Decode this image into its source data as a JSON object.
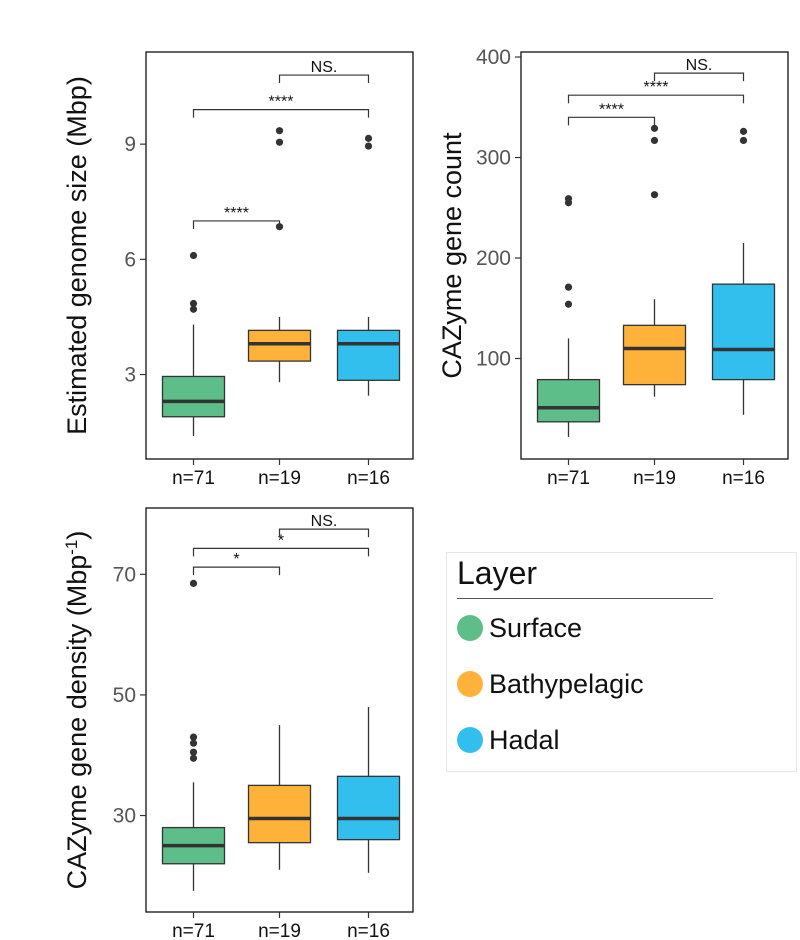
{
  "legend": {
    "title": "Layer",
    "items": [
      {
        "label": "Surface",
        "color": "#5DBE8A"
      },
      {
        "label": "Bathypelagic",
        "color": "#FFB23A"
      },
      {
        "label": "Hadal",
        "color": "#33BFEE"
      }
    ]
  },
  "chart_data": [
    {
      "type": "boxplot",
      "ylabel": "Estimated genome size (Mbp)",
      "ylim": [
        0.8,
        11.4
      ],
      "yticks": [
        3,
        6,
        9
      ],
      "categories": [
        "n=71",
        "n=19",
        "n=16"
      ],
      "groups": [
        {
          "layer": "Surface",
          "color": "#5DBE8A",
          "whisker_low": 1.4,
          "q1": 1.9,
          "median": 2.3,
          "q3": 2.95,
          "whisker_high": 4.3,
          "outliers": [
            4.7,
            4.85,
            6.1
          ]
        },
        {
          "layer": "Bathypelagic",
          "color": "#FFB23A",
          "whisker_low": 2.8,
          "q1": 3.35,
          "median": 3.8,
          "q3": 4.15,
          "whisker_high": 4.5,
          "outliers": [
            6.85,
            9.05,
            9.35
          ]
        },
        {
          "layer": "Hadal",
          "color": "#33BFEE",
          "whisker_low": 2.45,
          "q1": 2.85,
          "median": 3.8,
          "q3": 4.15,
          "whisker_high": 4.5,
          "outliers": [
            8.95,
            9.15
          ]
        }
      ],
      "significance": [
        {
          "from": 0,
          "to": 1,
          "label": "****",
          "y": 7.0
        },
        {
          "from": 0,
          "to": 2,
          "label": "****",
          "y": 9.9
        },
        {
          "from": 1,
          "to": 2,
          "label": "NS.",
          "y": 10.8
        }
      ]
    },
    {
      "type": "boxplot",
      "ylabel": "CAZyme gene count",
      "ylim": [
        0,
        405
      ],
      "yticks": [
        100,
        200,
        300,
        400
      ],
      "categories": [
        "n=71",
        "n=19",
        "n=16"
      ],
      "groups": [
        {
          "layer": "Surface",
          "color": "#5DBE8A",
          "whisker_low": 22,
          "q1": 37,
          "median": 51,
          "q3": 79,
          "whisker_high": 120,
          "outliers": [
            154,
            171,
            255,
            259
          ]
        },
        {
          "layer": "Bathypelagic",
          "color": "#FFB23A",
          "whisker_low": 62,
          "q1": 74,
          "median": 110,
          "q3": 133,
          "whisker_high": 159,
          "outliers": [
            263,
            317,
            329
          ]
        },
        {
          "layer": "Hadal",
          "color": "#33BFEE",
          "whisker_low": 44,
          "q1": 79,
          "median": 109,
          "q3": 174,
          "whisker_high": 215,
          "outliers": [
            317,
            326
          ]
        }
      ],
      "significance": [
        {
          "from": 0,
          "to": 1,
          "label": "****",
          "y": 340
        },
        {
          "from": 0,
          "to": 2,
          "label": "****",
          "y": 362
        },
        {
          "from": 1,
          "to": 2,
          "label": "NS.",
          "y": 384
        }
      ]
    },
    {
      "type": "boxplot",
      "ylabel": "CAZyme gene density (Mbp-1)",
      "ylim": [
        14,
        81
      ],
      "yticks": [
        30,
        50,
        70
      ],
      "categories": [
        "n=71",
        "n=19",
        "n=16"
      ],
      "groups": [
        {
          "layer": "Surface",
          "color": "#5DBE8A",
          "whisker_low": 17.5,
          "q1": 22,
          "median": 25,
          "q3": 28,
          "whisker_high": 35.5,
          "outliers": [
            39.5,
            40.5,
            42,
            43,
            68.5
          ]
        },
        {
          "layer": "Bathypelagic",
          "color": "#FFB23A",
          "whisker_low": 21,
          "q1": 25.5,
          "median": 29.5,
          "q3": 35,
          "whisker_high": 45,
          "outliers": []
        },
        {
          "layer": "Hadal",
          "color": "#33BFEE",
          "whisker_low": 20.5,
          "q1": 26,
          "median": 29.5,
          "q3": 36.5,
          "whisker_high": 48,
          "outliers": []
        }
      ],
      "significance": [
        {
          "from": 0,
          "to": 1,
          "label": "*",
          "y": 71.2
        },
        {
          "from": 0,
          "to": 2,
          "label": "*",
          "y": 74.3
        },
        {
          "from": 1,
          "to": 2,
          "label": "NS.",
          "y": 77.5
        }
      ]
    }
  ]
}
